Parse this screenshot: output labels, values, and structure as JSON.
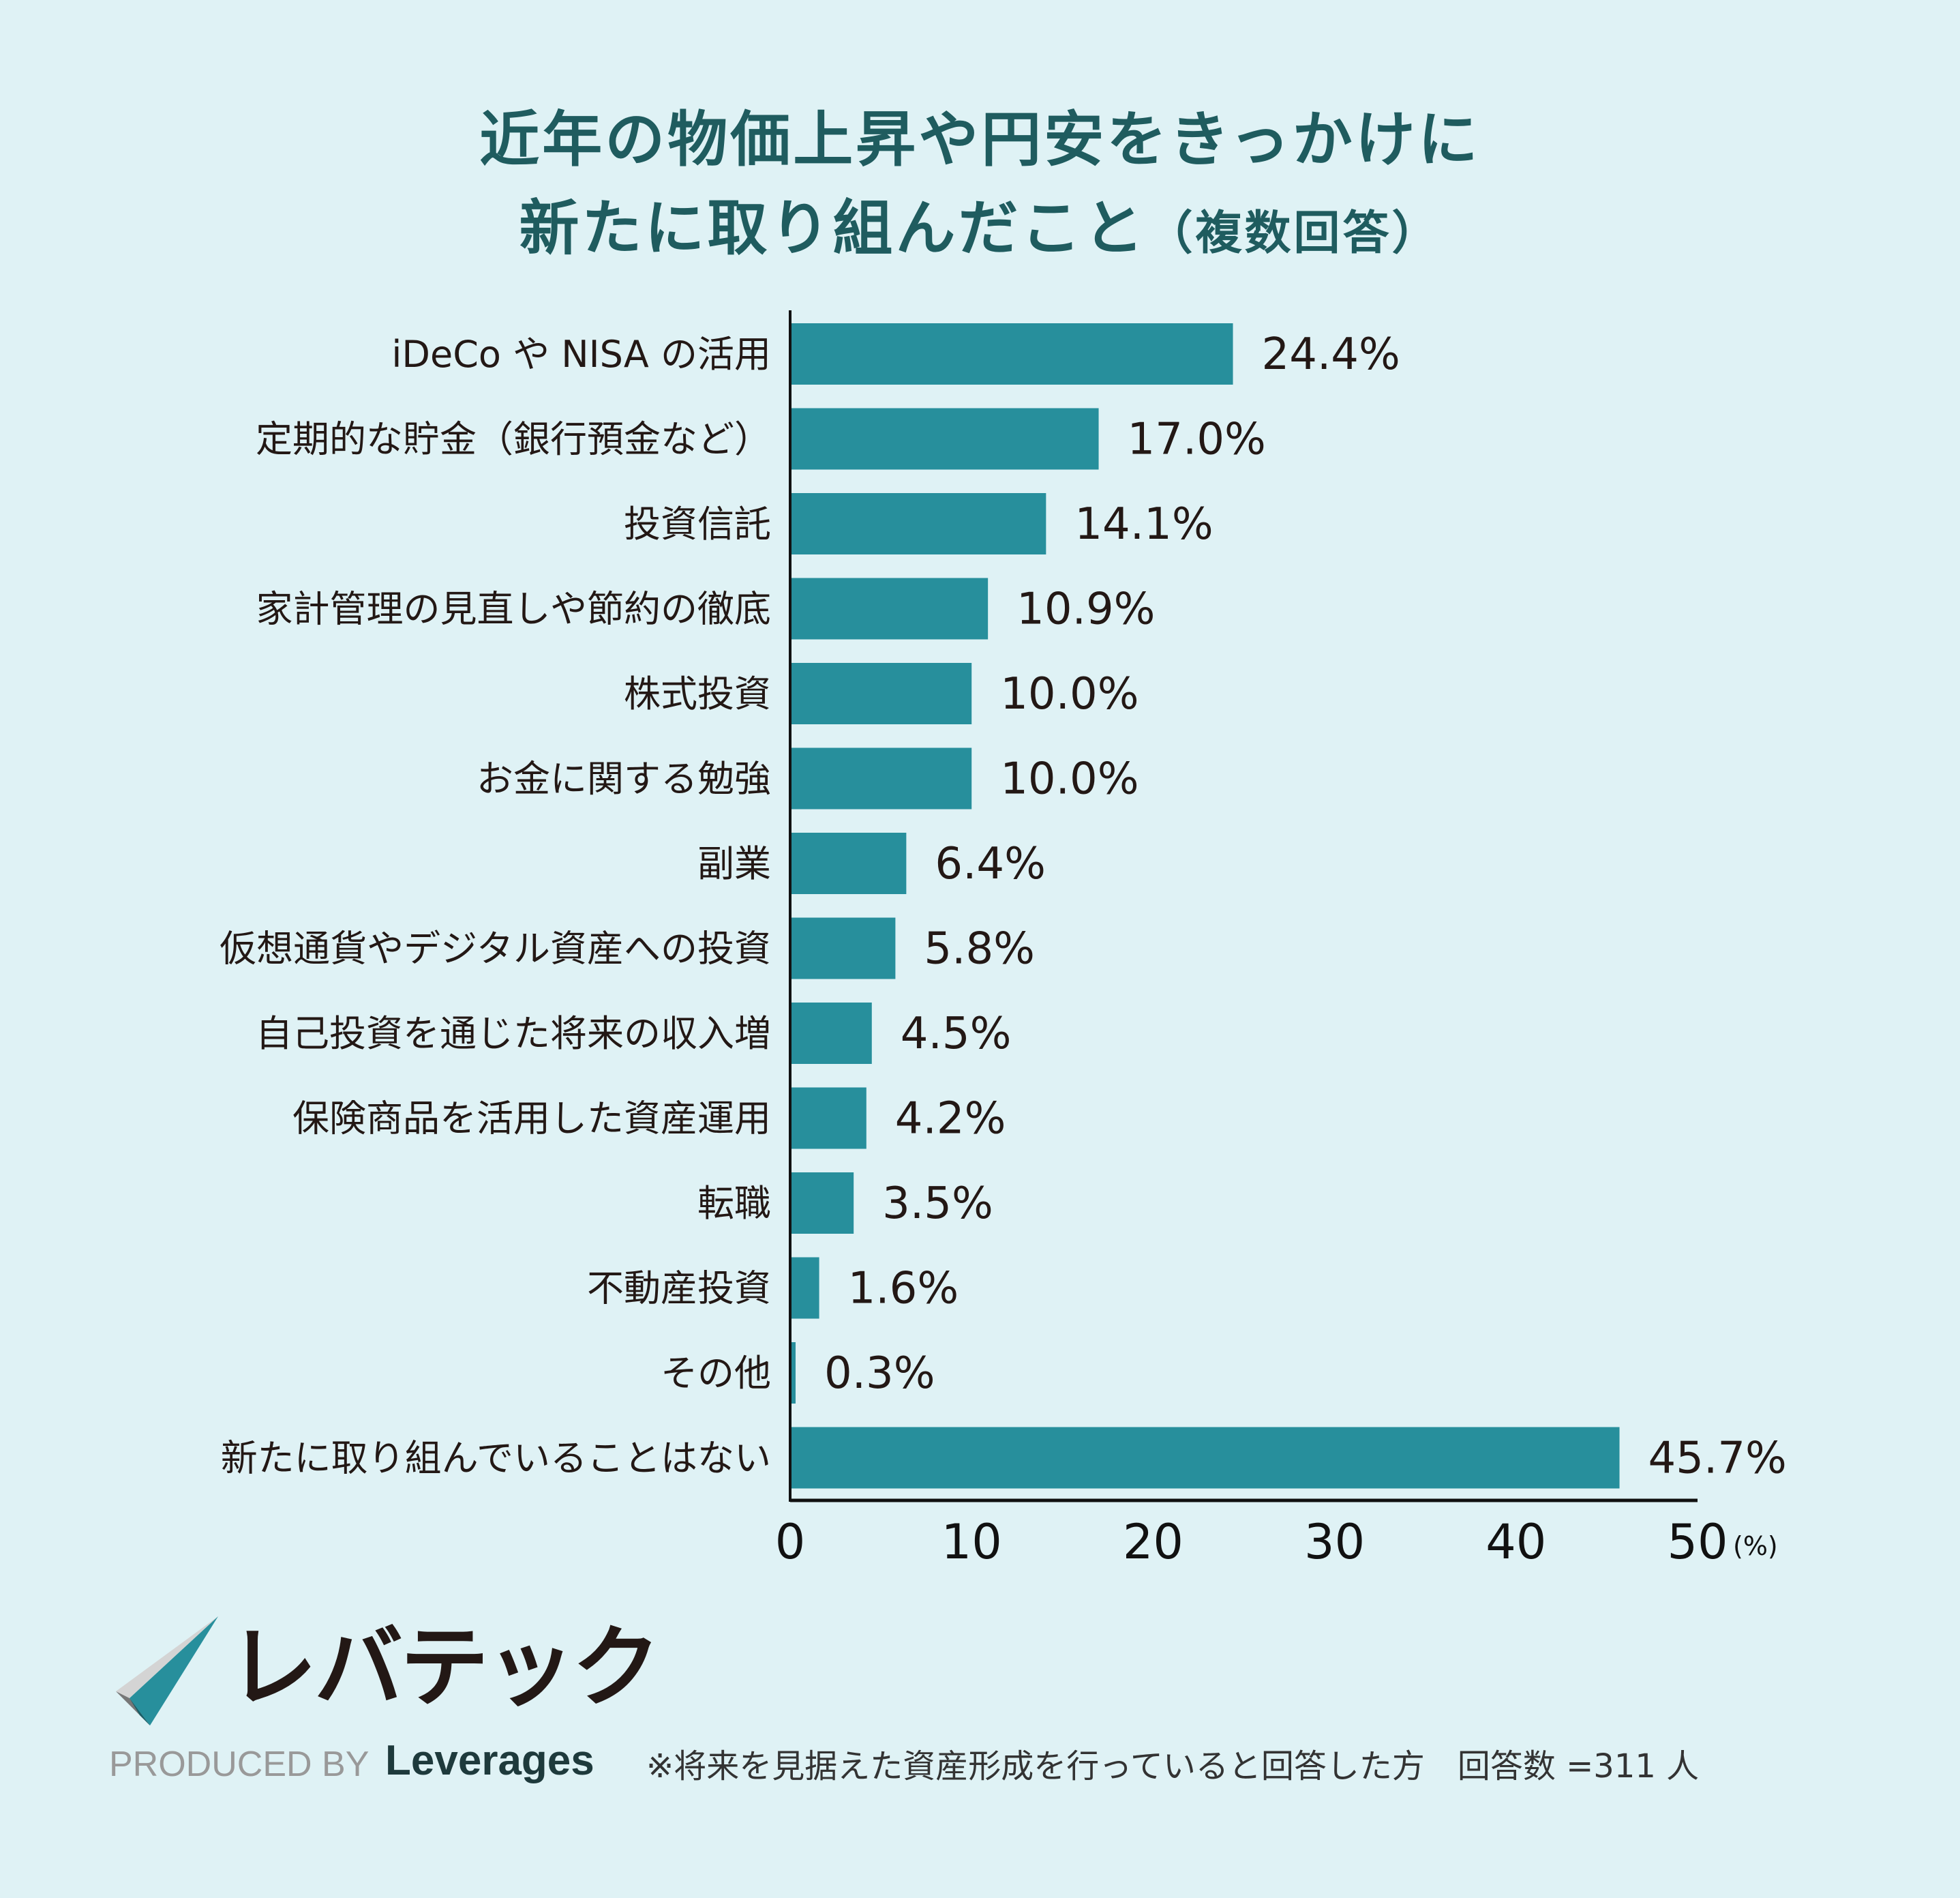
{
  "title": {
    "line1": "近年の物価上昇や円安をきっかけに",
    "line2": "新たに取り組んだこと",
    "line2_suffix": "（複数回答）"
  },
  "chart_data": {
    "type": "bar",
    "orientation": "horizontal",
    "categories": [
      "iDeCo や NISA の活用",
      "定期的な貯金（銀行預金など）",
      "投資信託",
      "家計管理の見直しや節約の徹底",
      "株式投資",
      "お金に関する勉強",
      "副業",
      "仮想通貨やデジタル資産への投資",
      "自己投資を通じた将来の収入増",
      "保険商品を活用した資産運用",
      "転職",
      "不動産投資",
      "その他",
      "新たに取り組んでいることはない"
    ],
    "values": [
      24.4,
      17.0,
      14.1,
      10.9,
      10.0,
      10.0,
      6.4,
      5.8,
      4.5,
      4.2,
      3.5,
      1.6,
      0.3,
      45.7
    ],
    "value_labels": [
      "24.4%",
      "17.0%",
      "14.1%",
      "10.9%",
      "10.0%",
      "10.0%",
      "6.4%",
      "5.8%",
      "4.5%",
      "4.2%",
      "3.5%",
      "1.6%",
      "0.3%",
      "45.7%"
    ],
    "xlim": [
      0,
      50
    ],
    "xticks": [
      "0",
      "10",
      "20",
      "30",
      "40",
      "50"
    ],
    "xunit": "(%)",
    "bar_color": "#278f9c",
    "grid": false
  },
  "logo": {
    "name": "レバテック",
    "produced_by": "PRODUCED BY",
    "brand": "Leverages"
  },
  "note": "※将来を見据えた資産形成を行っていると回答した方　回答数 =311 人"
}
